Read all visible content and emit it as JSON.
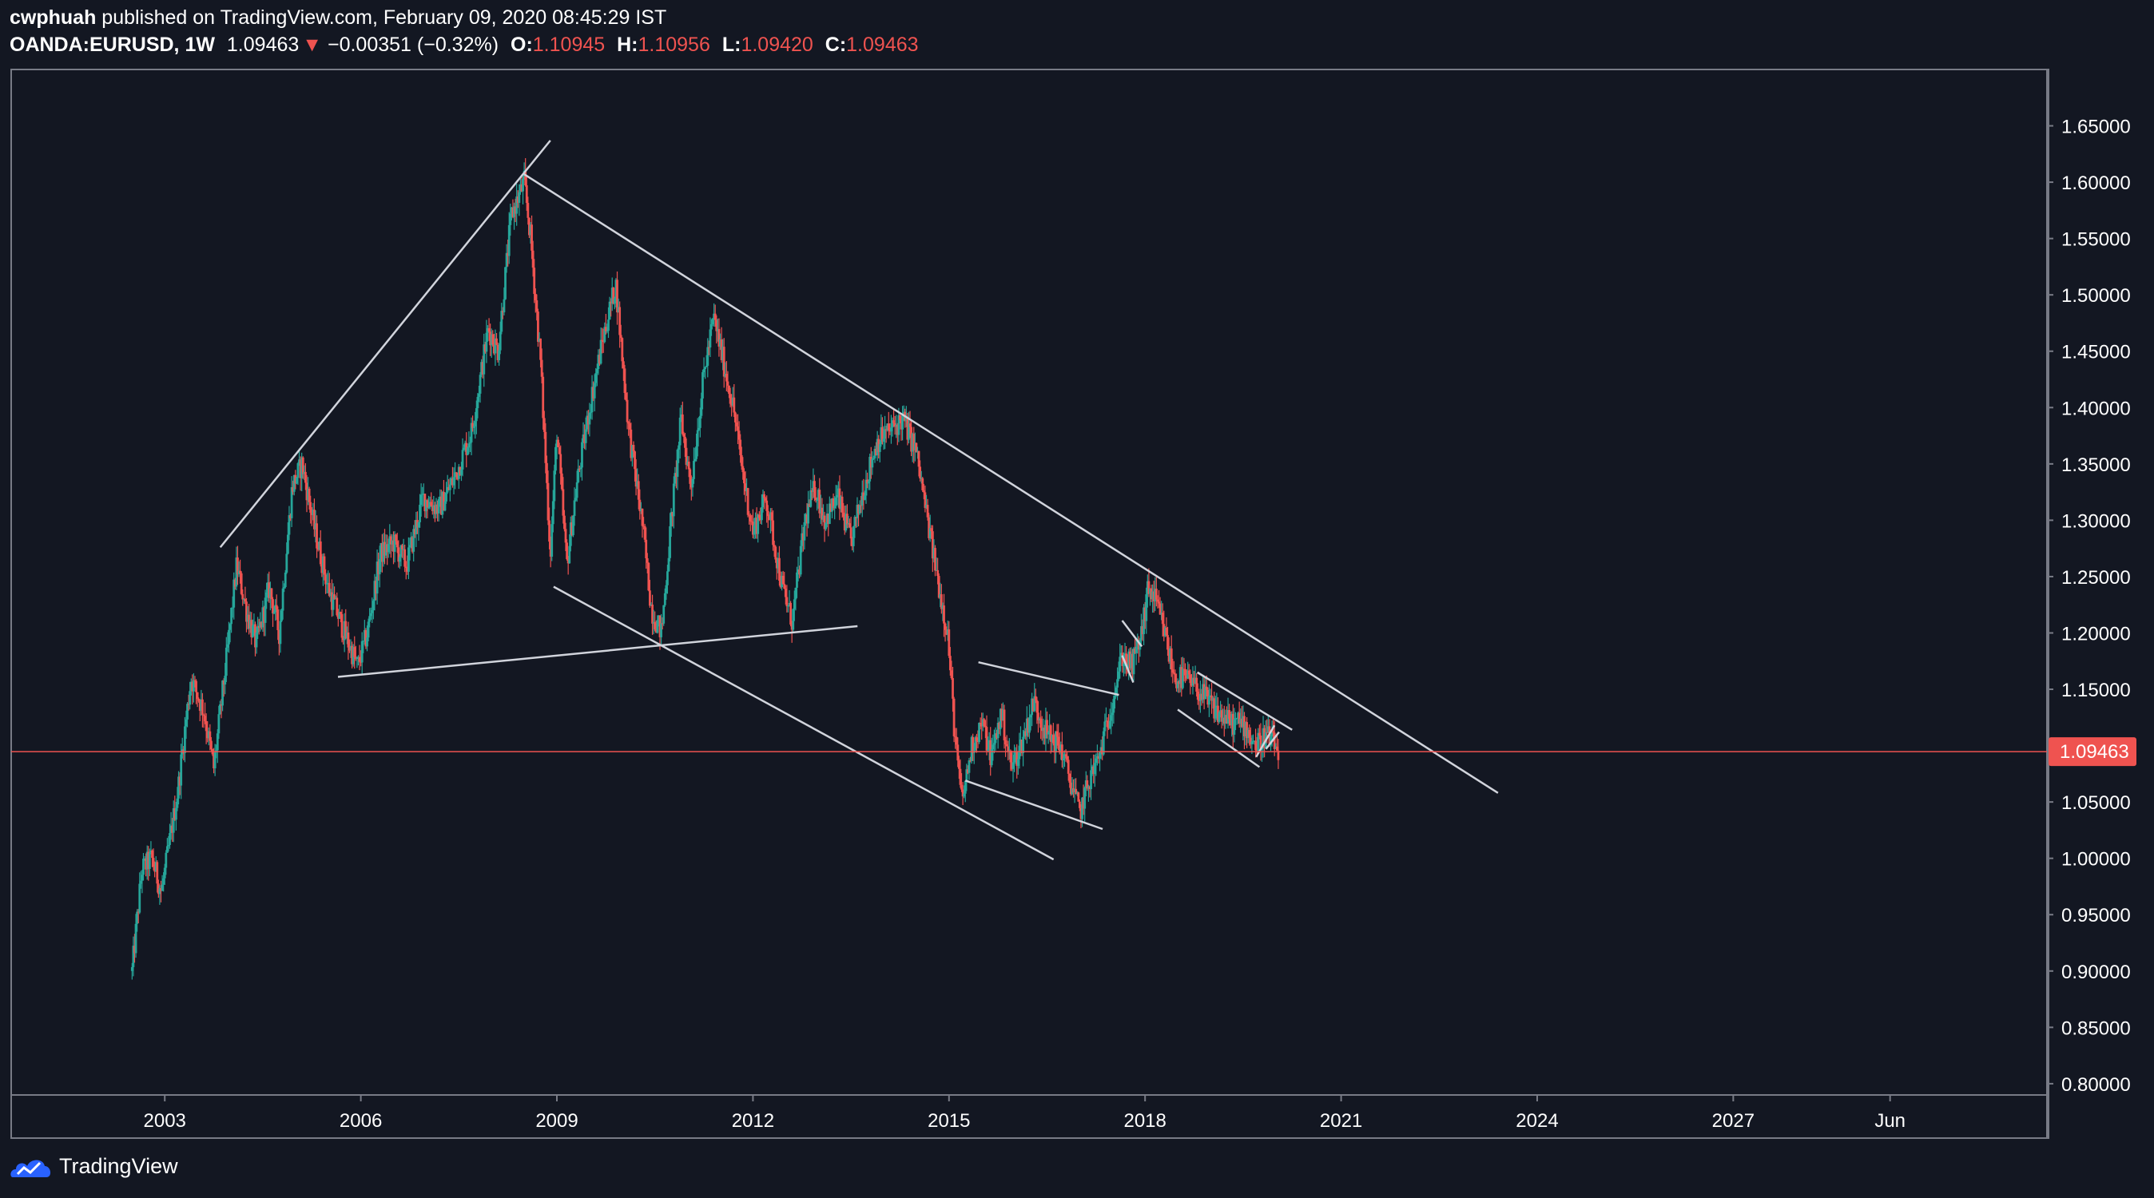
{
  "header": {
    "author": "cwphuah",
    "published_text": "published on TradingView.com, February 09, 2020 08:45:29 IST",
    "symbol": "OANDA:EURUSD, 1W",
    "last": "1.09463",
    "change_arrow": "▼",
    "change": "−0.00351 (−0.32%)",
    "open_label": "O:",
    "open": "1.10945",
    "high_label": "H:",
    "high": "1.10956",
    "low_label": "L:",
    "low": "1.09420",
    "close_label": "C:",
    "close": "1.09463"
  },
  "brand": {
    "name": "TradingView",
    "icon": "tradingview-cloud-icon"
  },
  "colors": {
    "background": "#131722",
    "up": "#26a69a",
    "down": "#ef5350",
    "trendline": "#d1d4dc",
    "price_line": "#ef5350",
    "axis_text": "#ffffff",
    "frame": "#787b86"
  },
  "chart_data": {
    "type": "candlestick",
    "instrument": "OANDA:EURUSD",
    "interval": "1W",
    "title": "",
    "xlabel": "",
    "ylabel": "",
    "ylim": [
      0.79,
      1.7
    ],
    "xlim": [
      2000.65,
      2031.8
    ],
    "grid": false,
    "y_ticks": [
      "1.65000",
      "1.60000",
      "1.55000",
      "1.50000",
      "1.45000",
      "1.40000",
      "1.35000",
      "1.30000",
      "1.25000",
      "1.20000",
      "1.15000",
      "1.10000",
      "1.05000",
      "1.00000",
      "0.95000",
      "0.90000",
      "0.85000",
      "0.80000"
    ],
    "x_ticks": [
      {
        "label": "2003",
        "x": 2003.0
      },
      {
        "label": "2006",
        "x": 2006.0
      },
      {
        "label": "2009",
        "x": 2009.0
      },
      {
        "label": "2012",
        "x": 2012.0
      },
      {
        "label": "2015",
        "x": 2015.0
      },
      {
        "label": "2018",
        "x": 2018.0
      },
      {
        "label": "2021",
        "x": 2021.0
      },
      {
        "label": "2024",
        "x": 2024.0
      },
      {
        "label": "2027",
        "x": 2027.0
      },
      {
        "label": "Jun",
        "x": 2029.4
      }
    ],
    "current_price": {
      "value": 1.09463,
      "label": "1.09463"
    },
    "price_path": [
      [
        2002.5,
        0.9
      ],
      [
        2002.65,
        0.99
      ],
      [
        2002.8,
        1.0
      ],
      [
        2002.95,
        0.97
      ],
      [
        2003.2,
        1.06
      ],
      [
        2003.4,
        1.16
      ],
      [
        2003.6,
        1.13
      ],
      [
        2003.75,
        1.08
      ],
      [
        2003.95,
        1.18
      ],
      [
        2004.1,
        1.26
      ],
      [
        2004.25,
        1.22
      ],
      [
        2004.4,
        1.19
      ],
      [
        2004.6,
        1.24
      ],
      [
        2004.75,
        1.2
      ],
      [
        2004.95,
        1.33
      ],
      [
        2005.1,
        1.35
      ],
      [
        2005.3,
        1.29
      ],
      [
        2005.5,
        1.24
      ],
      [
        2005.75,
        1.2
      ],
      [
        2005.95,
        1.17
      ],
      [
        2006.1,
        1.2
      ],
      [
        2006.3,
        1.27
      ],
      [
        2006.5,
        1.28
      ],
      [
        2006.7,
        1.26
      ],
      [
        2006.95,
        1.32
      ],
      [
        2007.2,
        1.31
      ],
      [
        2007.45,
        1.34
      ],
      [
        2007.7,
        1.38
      ],
      [
        2007.95,
        1.47
      ],
      [
        2008.1,
        1.45
      ],
      [
        2008.3,
        1.57
      ],
      [
        2008.5,
        1.6
      ],
      [
        2008.6,
        1.55
      ],
      [
        2008.75,
        1.44
      ],
      [
        2008.9,
        1.27
      ],
      [
        2009.0,
        1.38
      ],
      [
        2009.15,
        1.26
      ],
      [
        2009.3,
        1.33
      ],
      [
        2009.5,
        1.4
      ],
      [
        2009.7,
        1.46
      ],
      [
        2009.9,
        1.51
      ],
      [
        2010.1,
        1.38
      ],
      [
        2010.3,
        1.3
      ],
      [
        2010.45,
        1.22
      ],
      [
        2010.6,
        1.2
      ],
      [
        2010.75,
        1.3
      ],
      [
        2010.9,
        1.39
      ],
      [
        2011.05,
        1.33
      ],
      [
        2011.25,
        1.43
      ],
      [
        2011.4,
        1.48
      ],
      [
        2011.55,
        1.44
      ],
      [
        2011.7,
        1.4
      ],
      [
        2011.85,
        1.34
      ],
      [
        2012.0,
        1.29
      ],
      [
        2012.2,
        1.32
      ],
      [
        2012.45,
        1.24
      ],
      [
        2012.6,
        1.21
      ],
      [
        2012.8,
        1.3
      ],
      [
        2012.95,
        1.33
      ],
      [
        2013.1,
        1.3
      ],
      [
        2013.3,
        1.32
      ],
      [
        2013.5,
        1.28
      ],
      [
        2013.7,
        1.33
      ],
      [
        2013.9,
        1.37
      ],
      [
        2014.1,
        1.38
      ],
      [
        2014.3,
        1.39
      ],
      [
        2014.5,
        1.36
      ],
      [
        2014.7,
        1.29
      ],
      [
        2014.85,
        1.24
      ],
      [
        2014.98,
        1.2
      ],
      [
        2015.1,
        1.1
      ],
      [
        2015.2,
        1.05
      ],
      [
        2015.35,
        1.1
      ],
      [
        2015.5,
        1.12
      ],
      [
        2015.65,
        1.09
      ],
      [
        2015.8,
        1.13
      ],
      [
        2015.95,
        1.08
      ],
      [
        2016.1,
        1.1
      ],
      [
        2016.3,
        1.14
      ],
      [
        2016.5,
        1.11
      ],
      [
        2016.7,
        1.1
      ],
      [
        2016.85,
        1.07
      ],
      [
        2017.0,
        1.04
      ],
      [
        2017.15,
        1.07
      ],
      [
        2017.3,
        1.09
      ],
      [
        2017.5,
        1.14
      ],
      [
        2017.65,
        1.18
      ],
      [
        2017.8,
        1.17
      ],
      [
        2017.95,
        1.2
      ],
      [
        2018.05,
        1.24
      ],
      [
        2018.15,
        1.23
      ],
      [
        2018.3,
        1.2
      ],
      [
        2018.45,
        1.16
      ],
      [
        2018.6,
        1.16
      ],
      [
        2018.8,
        1.15
      ],
      [
        2018.95,
        1.14
      ],
      [
        2019.1,
        1.13
      ],
      [
        2019.3,
        1.12
      ],
      [
        2019.5,
        1.12
      ],
      [
        2019.7,
        1.1
      ],
      [
        2019.85,
        1.11
      ],
      [
        2020.05,
        1.09463
      ]
    ],
    "drawings": [
      {
        "x1": 2003.85,
        "y1": 1.276,
        "x2": 2008.9,
        "y2": 1.637
      },
      {
        "x1": 2008.5,
        "y1": 1.607,
        "x2": 2023.4,
        "y2": 1.058
      },
      {
        "x1": 2005.65,
        "y1": 1.161,
        "x2": 2013.6,
        "y2": 1.206
      },
      {
        "x1": 2008.95,
        "y1": 1.241,
        "x2": 2016.6,
        "y2": 0.999
      },
      {
        "x1": 2015.45,
        "y1": 1.174,
        "x2": 2017.6,
        "y2": 1.145
      },
      {
        "x1": 2015.25,
        "y1": 1.069,
        "x2": 2017.35,
        "y2": 1.026
      },
      {
        "x1": 2017.65,
        "y1": 1.211,
        "x2": 2017.95,
        "y2": 1.188
      },
      {
        "x1": 2017.65,
        "y1": 1.18,
        "x2": 2017.82,
        "y2": 1.156
      },
      {
        "x1": 2018.8,
        "y1": 1.165,
        "x2": 2020.25,
        "y2": 1.114
      },
      {
        "x1": 2018.5,
        "y1": 1.132,
        "x2": 2019.75,
        "y2": 1.081
      },
      {
        "x1": 2019.7,
        "y1": 1.09,
        "x2": 2019.98,
        "y2": 1.118
      },
      {
        "x1": 2019.85,
        "y1": 1.097,
        "x2": 2020.05,
        "y2": 1.112
      }
    ]
  }
}
